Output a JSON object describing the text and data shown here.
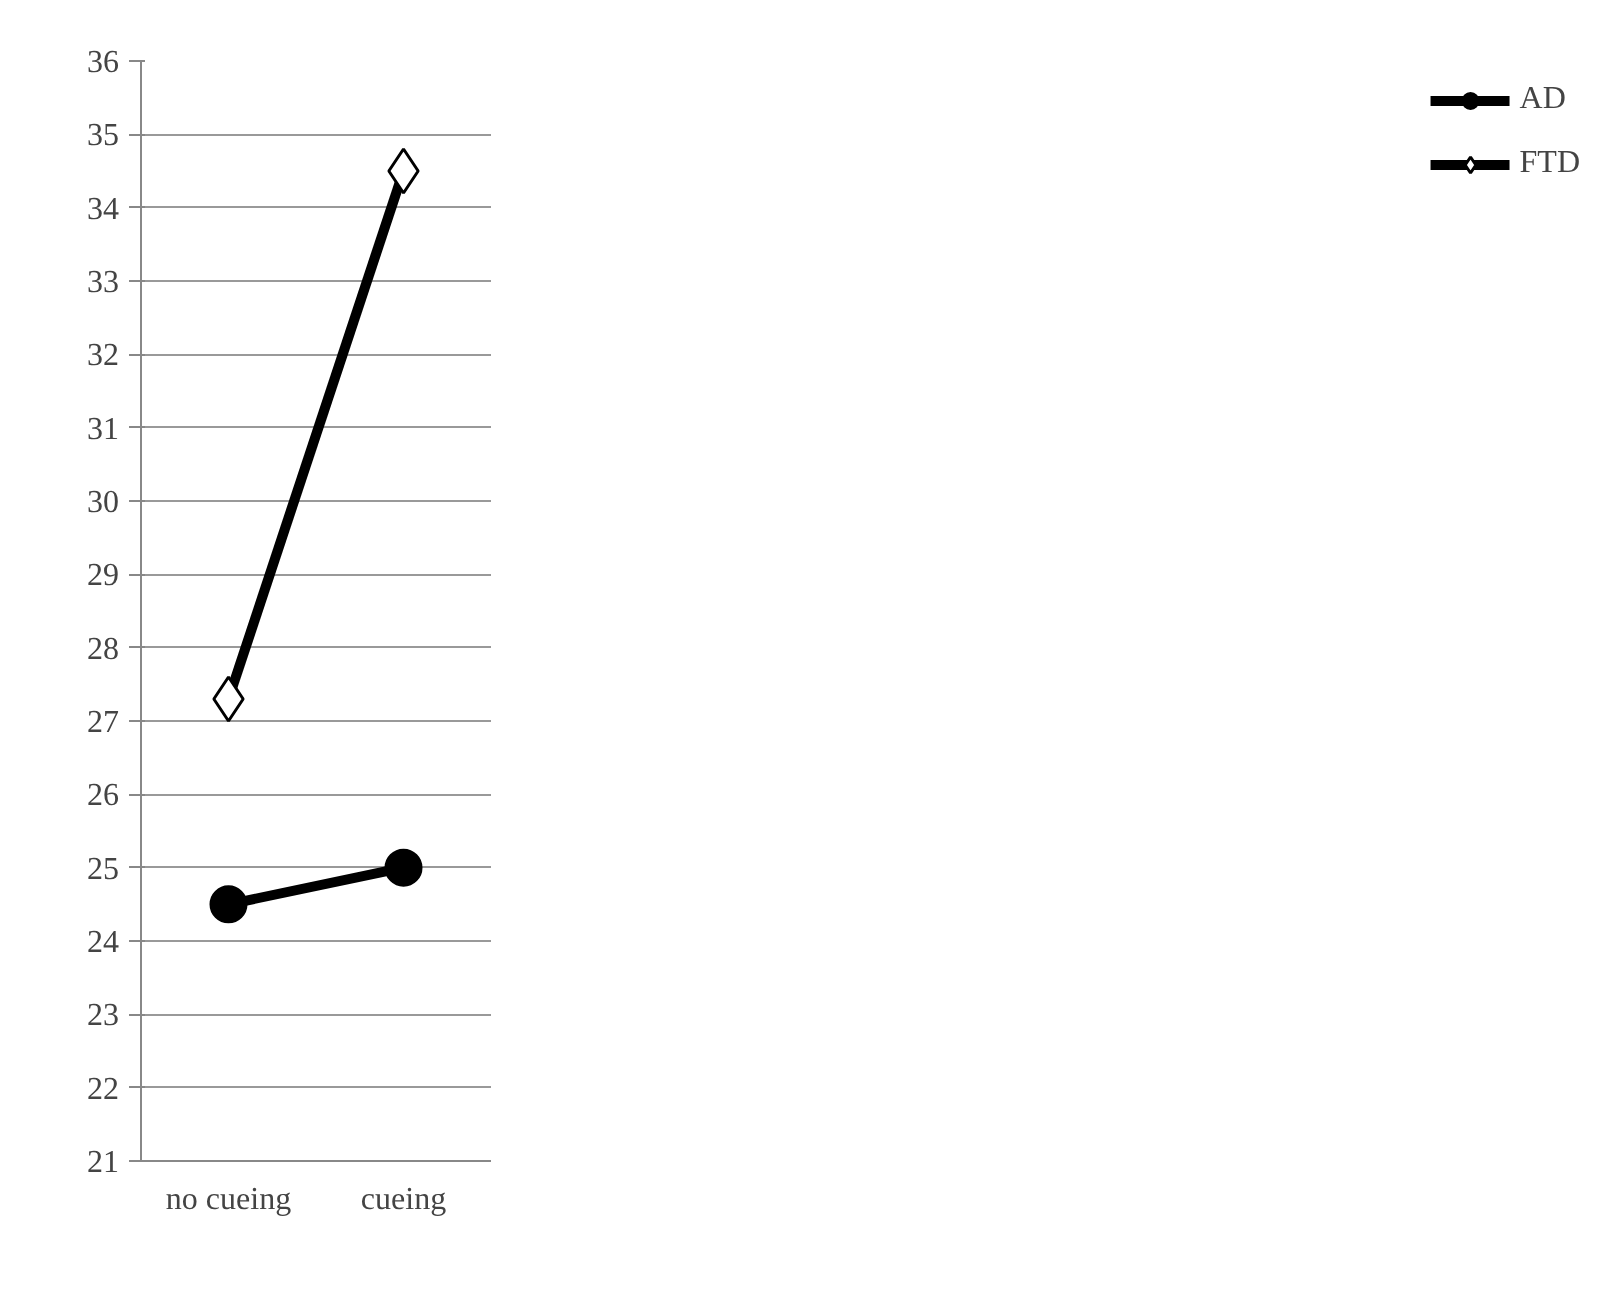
{
  "chart_data": {
    "type": "line",
    "categories": [
      "no cueing",
      "cueing"
    ],
    "series": [
      {
        "name": "AD",
        "color": "#000000",
        "values": [
          24.5,
          25
        ],
        "marker": "circle"
      },
      {
        "name": "FTD",
        "color": "#000000",
        "values": [
          27.3,
          34.5
        ],
        "marker": "diamond"
      }
    ],
    "ylim": [
      21,
      36
    ],
    "yticks": [
      21,
      22,
      23,
      24,
      25,
      26,
      27,
      28,
      29,
      30,
      31,
      32,
      33,
      34,
      35,
      36
    ],
    "grid": "y",
    "legend": "right",
    "line_style": "solid"
  }
}
